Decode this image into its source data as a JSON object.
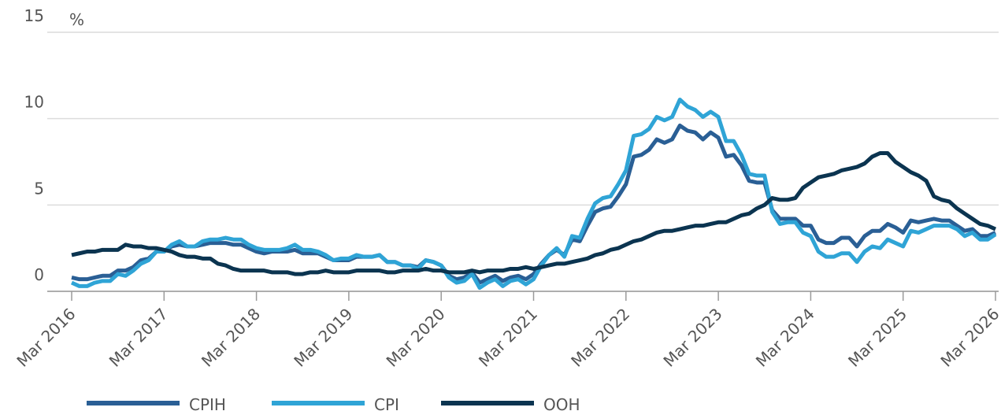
{
  "chart_data": {
    "type": "line",
    "y_label": "%",
    "x": [
      "2016-03",
      "2016-04",
      "2016-05",
      "2016-06",
      "2016-07",
      "2016-08",
      "2016-09",
      "2016-10",
      "2016-11",
      "2016-12",
      "2017-01",
      "2017-02",
      "2017-03",
      "2017-04",
      "2017-05",
      "2017-06",
      "2017-07",
      "2017-08",
      "2017-09",
      "2017-10",
      "2017-11",
      "2017-12",
      "2018-01",
      "2018-02",
      "2018-03",
      "2018-04",
      "2018-05",
      "2018-06",
      "2018-07",
      "2018-08",
      "2018-09",
      "2018-10",
      "2018-11",
      "2018-12",
      "2019-01",
      "2019-02",
      "2019-03",
      "2019-04",
      "2019-05",
      "2019-06",
      "2019-07",
      "2019-08",
      "2019-09",
      "2019-10",
      "2019-11",
      "2019-12",
      "2020-01",
      "2020-02",
      "2020-03",
      "2020-04",
      "2020-05",
      "2020-06",
      "2020-07",
      "2020-08",
      "2020-09",
      "2020-10",
      "2020-11",
      "2020-12",
      "2021-01",
      "2021-02",
      "2021-03",
      "2021-04",
      "2021-05",
      "2021-06",
      "2021-07",
      "2021-08",
      "2021-09",
      "2021-10",
      "2021-11",
      "2021-12",
      "2022-01",
      "2022-02",
      "2022-03",
      "2022-04",
      "2022-05",
      "2022-06",
      "2022-07",
      "2022-08",
      "2022-09",
      "2022-10",
      "2022-11",
      "2022-12",
      "2023-01",
      "2023-02",
      "2023-03",
      "2023-04",
      "2023-05",
      "2023-06",
      "2023-07",
      "2023-08",
      "2023-09",
      "2023-10",
      "2023-11",
      "2023-12",
      "2024-01",
      "2024-02",
      "2024-03",
      "2024-04",
      "2024-05",
      "2024-06",
      "2024-07",
      "2024-08",
      "2024-09",
      "2024-10",
      "2024-11",
      "2024-12",
      "2025-01",
      "2025-02",
      "2025-03",
      "2025-04",
      "2025-05",
      "2025-06",
      "2025-07",
      "2025-08",
      "2025-09",
      "2025-10",
      "2025-11",
      "2025-12",
      "2026-01",
      "2026-02",
      "2026-03"
    ],
    "xticks": [
      {
        "value": "2016-03",
        "label": "Mar 2016"
      },
      {
        "value": "2017-03",
        "label": "Mar 2017"
      },
      {
        "value": "2018-03",
        "label": "Mar 2018"
      },
      {
        "value": "2019-03",
        "label": "Mar 2019"
      },
      {
        "value": "2020-03",
        "label": "Mar 2020"
      },
      {
        "value": "2021-03",
        "label": "Mar 2021"
      },
      {
        "value": "2022-03",
        "label": "Mar 2022"
      },
      {
        "value": "2023-03",
        "label": "Mar 2023"
      },
      {
        "value": "2024-03",
        "label": "Mar 2024"
      },
      {
        "value": "2025-03",
        "label": "Mar 2025"
      },
      {
        "value": "2026-03",
        "label": "Mar 2026"
      }
    ],
    "ylim": [
      0,
      15
    ],
    "yticks": [
      0,
      5,
      10,
      15
    ],
    "grid": true,
    "series": [
      {
        "name": "CPIH",
        "color": "#2a5f95",
        "values": [
          0.8,
          0.7,
          0.7,
          0.8,
          0.9,
          0.9,
          1.2,
          1.2,
          1.4,
          1.8,
          1.9,
          2.3,
          2.3,
          2.6,
          2.7,
          2.6,
          2.6,
          2.7,
          2.8,
          2.8,
          2.8,
          2.7,
          2.7,
          2.5,
          2.3,
          2.2,
          2.3,
          2.3,
          2.3,
          2.4,
          2.2,
          2.2,
          2.2,
          2.0,
          1.8,
          1.8,
          1.8,
          2.0,
          2.0,
          2.0,
          2.1,
          1.7,
          1.7,
          1.5,
          1.5,
          1.4,
          1.8,
          1.7,
          1.5,
          0.9,
          0.7,
          0.8,
          1.1,
          0.5,
          0.7,
          0.9,
          0.6,
          0.8,
          0.9,
          0.7,
          1.0,
          1.6,
          2.1,
          2.4,
          2.1,
          3.0,
          2.9,
          3.8,
          4.6,
          4.8,
          4.9,
          5.5,
          6.2,
          7.8,
          7.9,
          8.2,
          8.8,
          8.6,
          8.8,
          9.6,
          9.3,
          9.2,
          8.8,
          9.2,
          8.9,
          7.8,
          7.9,
          7.3,
          6.4,
          6.3,
          6.3,
          4.7,
          4.2,
          4.2,
          4.2,
          3.8,
          3.8,
          3.0,
          2.8,
          2.8,
          3.1,
          3.1,
          2.6,
          3.2,
          3.5,
          3.5,
          3.9,
          3.7,
          3.4,
          4.1,
          4.0,
          4.1,
          4.2,
          4.1,
          4.1,
          3.8,
          3.5,
          3.6,
          3.2,
          3.2,
          3.4
        ]
      },
      {
        "name": "CPI",
        "color": "#2fa4d6",
        "values": [
          0.5,
          0.3,
          0.3,
          0.5,
          0.6,
          0.6,
          1.0,
          0.9,
          1.2,
          1.6,
          1.8,
          2.3,
          2.3,
          2.7,
          2.9,
          2.6,
          2.6,
          2.9,
          3.0,
          3.0,
          3.1,
          3.0,
          3.0,
          2.7,
          2.5,
          2.4,
          2.4,
          2.4,
          2.5,
          2.7,
          2.4,
          2.4,
          2.3,
          2.1,
          1.8,
          1.9,
          1.9,
          2.1,
          2.0,
          2.0,
          2.1,
          1.7,
          1.7,
          1.5,
          1.5,
          1.3,
          1.8,
          1.7,
          1.5,
          0.8,
          0.5,
          0.6,
          1.0,
          0.2,
          0.5,
          0.7,
          0.3,
          0.6,
          0.7,
          0.4,
          0.7,
          1.5,
          2.1,
          2.5,
          2.0,
          3.2,
          3.1,
          4.2,
          5.1,
          5.4,
          5.5,
          6.2,
          7.0,
          9.0,
          9.1,
          9.4,
          10.1,
          9.9,
          10.1,
          11.1,
          10.7,
          10.5,
          10.1,
          10.4,
          10.1,
          8.7,
          8.7,
          7.9,
          6.8,
          6.7,
          6.7,
          4.6,
          3.9,
          4.0,
          4.0,
          3.4,
          3.2,
          2.3,
          2.0,
          2.0,
          2.2,
          2.2,
          1.7,
          2.3,
          2.6,
          2.5,
          3.0,
          2.8,
          2.6,
          3.5,
          3.4,
          3.6,
          3.8,
          3.8,
          3.8,
          3.6,
          3.2,
          3.4,
          3.0,
          3.0,
          3.3
        ]
      },
      {
        "name": "OOH",
        "color": "#0b3450",
        "values": [
          2.1,
          2.2,
          2.3,
          2.3,
          2.4,
          2.4,
          2.4,
          2.7,
          2.6,
          2.6,
          2.5,
          2.5,
          2.4,
          2.3,
          2.1,
          2.0,
          2.0,
          1.9,
          1.9,
          1.6,
          1.5,
          1.3,
          1.2,
          1.2,
          1.2,
          1.2,
          1.1,
          1.1,
          1.1,
          1.0,
          1.0,
          1.1,
          1.1,
          1.2,
          1.1,
          1.1,
          1.1,
          1.2,
          1.2,
          1.2,
          1.2,
          1.1,
          1.1,
          1.2,
          1.2,
          1.2,
          1.3,
          1.2,
          1.2,
          1.1,
          1.1,
          1.1,
          1.2,
          1.1,
          1.2,
          1.2,
          1.2,
          1.3,
          1.3,
          1.4,
          1.3,
          1.4,
          1.5,
          1.6,
          1.6,
          1.7,
          1.8,
          1.9,
          2.1,
          2.2,
          2.4,
          2.5,
          2.7,
          2.9,
          3.0,
          3.2,
          3.4,
          3.5,
          3.5,
          3.6,
          3.7,
          3.8,
          3.8,
          3.9,
          4.0,
          4.0,
          4.2,
          4.4,
          4.5,
          4.8,
          5.0,
          5.4,
          5.3,
          5.3,
          5.4,
          6.0,
          6.3,
          6.6,
          6.7,
          6.8,
          7.0,
          7.1,
          7.2,
          7.4,
          7.8,
          8.0,
          8.0,
          7.5,
          7.2,
          6.9,
          6.7,
          6.4,
          5.5,
          5.3,
          5.2,
          4.8,
          4.5,
          4.2,
          3.9,
          3.8,
          3.6
        ]
      }
    ]
  }
}
